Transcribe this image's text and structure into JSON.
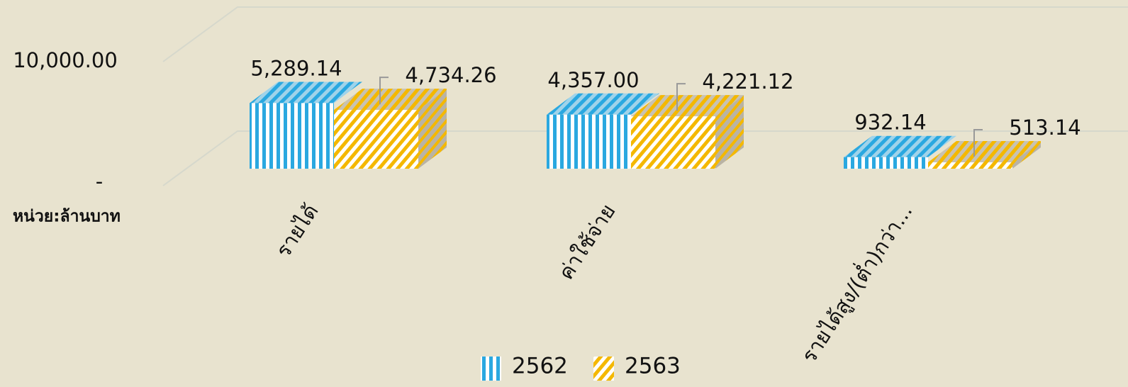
{
  "chart_data": {
    "type": "bar3d",
    "y_label": "หน่วย:ล้านบาท",
    "categories": [
      "รายได้",
      "ค่าใช้จ่าย",
      "รายได้สูง/(ต่ำ)กว่า..."
    ],
    "series": [
      {
        "name": "2562",
        "color": "#2aa8e0",
        "values": [
          5289.14,
          4357.0,
          932.14
        ],
        "value_labels": [
          "5,289.14",
          "4,357.00",
          "932.14"
        ]
      },
      {
        "name": "2563",
        "color": "#f4b800",
        "values": [
          4734.26,
          4221.12,
          513.14
        ],
        "value_labels": [
          "4,734.26",
          "4,221.12",
          "513.14"
        ]
      }
    ],
    "ylim": [
      0,
      10000
    ],
    "yticks": [
      {
        "value": 0,
        "label": "-"
      },
      {
        "value": 10000,
        "label": "10,000.00"
      }
    ],
    "grid": true
  }
}
